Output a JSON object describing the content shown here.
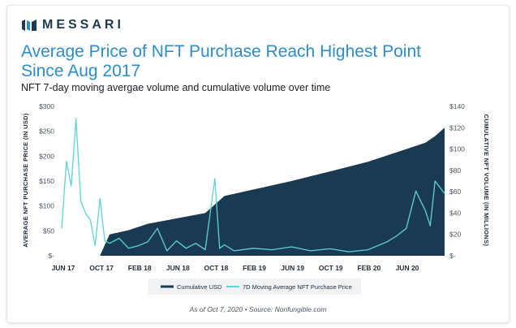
{
  "brand": {
    "name": "MESSARI"
  },
  "title": "Average Price of NFT Purchase Reach Highest Point Since Aug 2017",
  "subtitle": "NFT 7-day moving avergae volume and cumulative volume over time",
  "footnote": "As of Oct  7, 2020  •  Source: Nonfungible.com",
  "colors": {
    "cumulative": "#1a3a52",
    "moving_avg": "#5ed3d3",
    "title": "#2d8cc9"
  },
  "chart_data": {
    "type": "area",
    "title": "Average Price of NFT Purchase Reach Highest Point Since Aug 2017",
    "subtitle": "NFT 7-day moving avergae volume and cumulative volume over time",
    "x_tick_labels": [
      "JUN 17",
      "OCT 17",
      "FEB 18",
      "JUN 18",
      "OCT 18",
      "FEB 19",
      "JUN 19",
      "OCT 19",
      "FEB 20",
      "JUN 20"
    ],
    "x_range": [
      "2017-06",
      "2020-10"
    ],
    "y_left": {
      "label": "AVERAGE NFT PURCHASE PRICE (IN USD)",
      "range": [
        0,
        300
      ],
      "ticks": [
        "$-",
        "$50",
        "$100",
        "$150",
        "$200",
        "$250",
        "$300"
      ]
    },
    "y_right": {
      "label": "CUMULATIVE NFT VOLUME (IN MILLIONS)",
      "range": [
        0,
        140
      ],
      "ticks": [
        "$-",
        "$20",
        "$40",
        "$60",
        "$80",
        "$100",
        "$120",
        "$140"
      ]
    },
    "legend_position": "bottom-center",
    "series": [
      {
        "name": "Cumulative USD",
        "type": "area",
        "axis": "right",
        "x": [
          "2017-06",
          "2017-10",
          "2017-11",
          "2018-01",
          "2018-03",
          "2018-06",
          "2018-09",
          "2018-11",
          "2019-02",
          "2019-06",
          "2019-10",
          "2020-02",
          "2020-06",
          "2020-08",
          "2020-09",
          "2020-10"
        ],
        "values": [
          0,
          0,
          20,
          24,
          30,
          35,
          40,
          56,
          62,
          70,
          79,
          88,
          100,
          106,
          112,
          120
        ]
      },
      {
        "name": "7D Moving Average NFT Purchase Price",
        "type": "line",
        "axis": "left",
        "x": [
          "2017-06",
          "2017-06",
          "2017-07",
          "2017-07",
          "2017-08",
          "2017-08",
          "2017-09",
          "2017-09",
          "2017-10",
          "2017-10",
          "2017-11",
          "2017-12",
          "2018-01",
          "2018-02",
          "2018-03",
          "2018-04",
          "2018-05",
          "2018-06",
          "2018-07",
          "2018-08",
          "2018-09",
          "2018-10",
          "2018-10",
          "2018-11",
          "2018-12",
          "2019-02",
          "2019-04",
          "2019-06",
          "2019-08",
          "2019-10",
          "2019-12",
          "2020-02",
          "2020-04",
          "2020-05",
          "2020-06",
          "2020-07",
          "2020-08",
          "2020-08",
          "2020-09",
          "2020-10"
        ],
        "values": [
          55,
          190,
          140,
          275,
          110,
          85,
          72,
          20,
          115,
          30,
          25,
          35,
          15,
          20,
          28,
          55,
          10,
          30,
          15,
          25,
          12,
          155,
          15,
          22,
          10,
          15,
          12,
          18,
          10,
          14,
          8,
          12,
          28,
          40,
          55,
          130,
          90,
          60,
          150,
          125
        ]
      }
    ]
  }
}
